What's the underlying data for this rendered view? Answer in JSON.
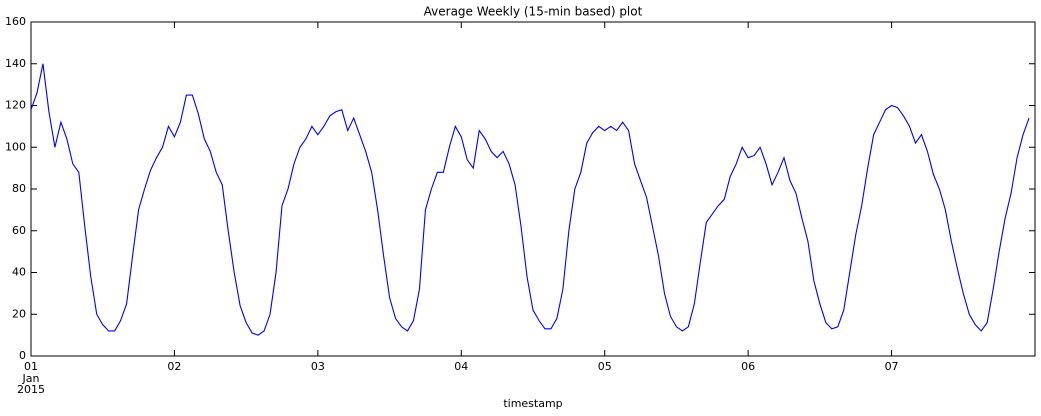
{
  "chart_data": {
    "type": "line",
    "title": "Average Weekly (15-min based) plot",
    "x_label": "timestamp",
    "x": [
      0,
      1,
      2,
      3,
      4,
      5,
      6,
      7,
      8,
      9,
      10,
      11,
      12,
      13,
      14,
      15,
      16,
      17,
      18,
      19,
      20,
      21,
      22,
      23,
      24,
      25,
      26,
      27,
      28,
      29,
      30,
      31,
      32,
      33,
      34,
      35,
      36,
      37,
      38,
      39,
      40,
      41,
      42,
      43,
      44,
      45,
      46,
      47,
      48,
      49,
      50,
      51,
      52,
      53,
      54,
      55,
      56,
      57,
      58,
      59,
      60,
      61,
      62,
      63,
      64,
      65,
      66,
      67,
      68,
      69,
      70,
      71,
      72,
      73,
      74,
      75,
      76,
      77,
      78,
      79,
      80,
      81,
      82,
      83,
      84,
      85,
      86,
      87,
      88,
      89,
      90,
      91,
      92,
      93,
      94,
      95,
      96,
      97,
      98,
      99,
      100,
      101,
      102,
      103,
      104,
      105,
      106,
      107,
      108,
      109,
      110,
      111,
      112,
      113,
      114,
      115,
      116,
      117,
      118,
      119,
      120,
      121,
      122,
      123,
      124,
      125,
      126,
      127,
      128,
      129,
      130,
      131,
      132,
      133,
      134,
      135,
      136,
      137,
      138,
      139,
      140,
      141,
      142,
      143,
      144,
      145,
      146,
      147,
      148,
      149,
      150,
      151,
      152,
      153,
      154,
      155,
      156,
      157,
      158,
      159,
      160,
      161,
      162,
      163,
      164,
      165,
      166,
      167
    ],
    "values": [
      118,
      126,
      140,
      117,
      100,
      112,
      104,
      92,
      88,
      62,
      38,
      20,
      15,
      12,
      12,
      17,
      25,
      48,
      70,
      80,
      89,
      95,
      100,
      110,
      105,
      112,
      125,
      125,
      116,
      104,
      98,
      88,
      82,
      60,
      40,
      24,
      16,
      11,
      10,
      12,
      20,
      40,
      72,
      80,
      92,
      100,
      104,
      110,
      106,
      110,
      115,
      117,
      118,
      108,
      114,
      106,
      98,
      88,
      70,
      48,
      28,
      18,
      14,
      12,
      17,
      32,
      70,
      80,
      88,
      88,
      100,
      110,
      105,
      94,
      90,
      108,
      104,
      98,
      95,
      98,
      92,
      82,
      62,
      38,
      22,
      17,
      13,
      13,
      18,
      32,
      60,
      80,
      88,
      102,
      107,
      110,
      108,
      110,
      108,
      112,
      108,
      92,
      84,
      76,
      62,
      48,
      30,
      19,
      14,
      12,
      14,
      25,
      45,
      64,
      68,
      72,
      75,
      86,
      92,
      100,
      95,
      96,
      100,
      92,
      82,
      88,
      95,
      84,
      78,
      66,
      55,
      36,
      25,
      16,
      13,
      14,
      22,
      40,
      58,
      72,
      90,
      106,
      112,
      118,
      120,
      119,
      115,
      110,
      102,
      106,
      98,
      87,
      80,
      70,
      55,
      42,
      30,
      20,
      15,
      12,
      16,
      32,
      50,
      66,
      78,
      95,
      106,
      114
    ],
    "color": "#0000ff",
    "xlim": [
      0,
      168
    ],
    "xticks": [
      {
        "value": 0,
        "label": "01"
      },
      {
        "value": 24,
        "label": "02"
      },
      {
        "value": 48,
        "label": "03"
      },
      {
        "value": 72,
        "label": "04"
      },
      {
        "value": 96,
        "label": "05"
      },
      {
        "value": 120,
        "label": "06"
      },
      {
        "value": 144,
        "label": "07"
      }
    ],
    "x_tick_sublabels": [
      "Jan",
      "2015"
    ],
    "ylim": [
      0,
      160
    ],
    "yticks": [
      0,
      20,
      40,
      60,
      80,
      100,
      120,
      140,
      160
    ],
    "grid": false
  }
}
